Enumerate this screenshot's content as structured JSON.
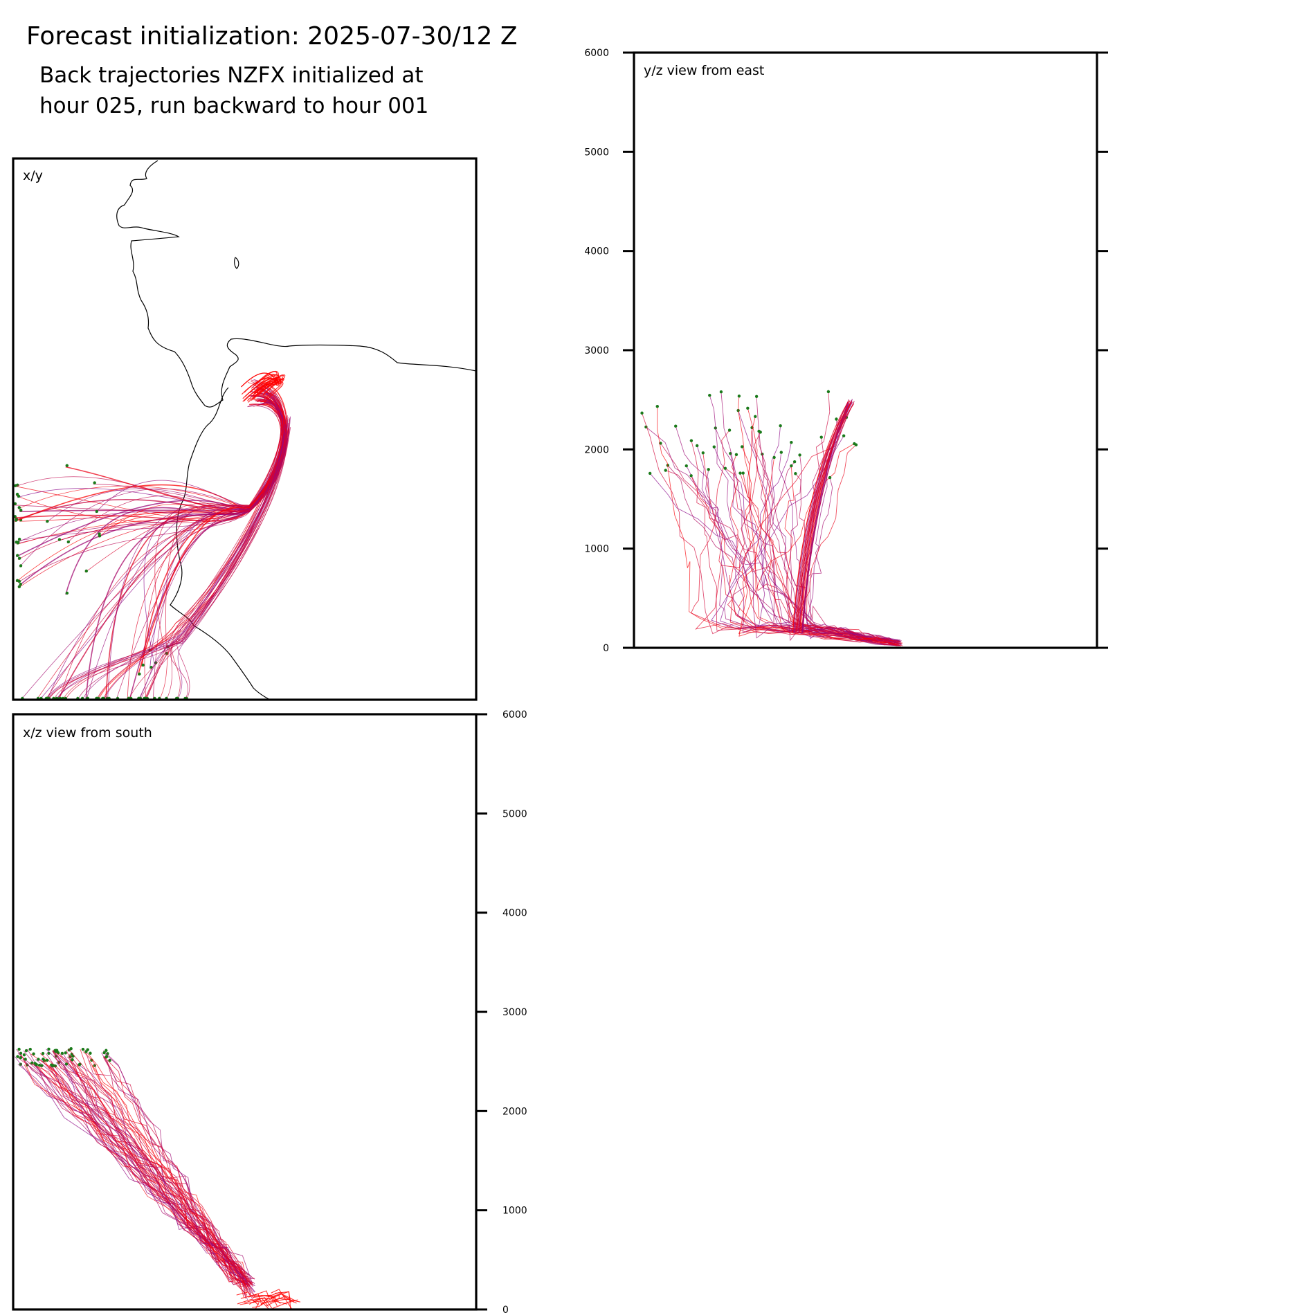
{
  "figure": {
    "title": "Forecast initialization: 2025-07-30/12 Z",
    "subtitle_line1": "Back trajectories NZFX initialized at",
    "subtitle_line2": "hour 025, run backward to hour 001"
  },
  "colors": {
    "trajectory_late": "#ff0000",
    "trajectory_early": "#8b0a8b",
    "endpoint": "#1a7a1a",
    "coastline": "#000000",
    "frame": "#000000"
  },
  "chart_data": [
    {
      "type": "line",
      "panel": "x/y",
      "label": "x/y",
      "description_source": "map plan view of back trajectories with coastline",
      "x": [],
      "y": [],
      "series_note": "trajectories converge near the release point and spread west/southwest"
    },
    {
      "type": "line",
      "panel": "y/z",
      "label": "y/z view from east",
      "ylim": [
        0,
        6000
      ],
      "yticks": [
        "0",
        "1000",
        "2000",
        "3000",
        "4000",
        "5000",
        "6000"
      ]
    },
    {
      "type": "line",
      "panel": "x/z",
      "label": "x/z view from south",
      "ylim": [
        0,
        6000
      ],
      "yticks": [
        "0",
        "1000",
        "2000",
        "3000",
        "4000",
        "5000",
        "6000"
      ]
    }
  ]
}
